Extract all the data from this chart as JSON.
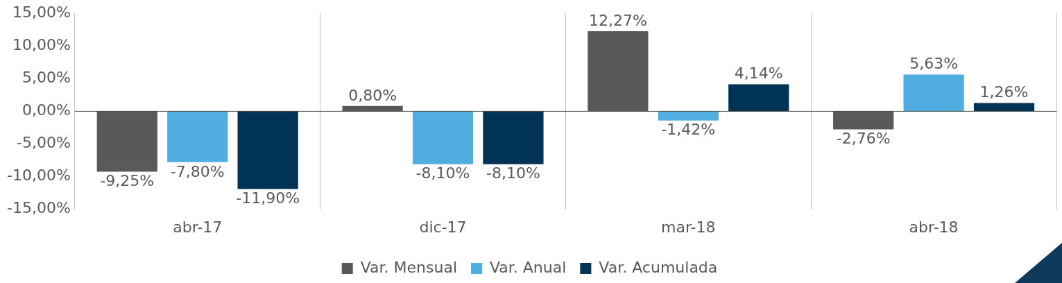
{
  "chart_data": {
    "type": "bar",
    "categories": [
      "abr-17",
      "dic-17",
      "mar-18",
      "abr-18"
    ],
    "series": [
      {
        "name": "Var. Mensual",
        "color": "#595959",
        "values": [
          -9.25,
          0.8,
          12.27,
          -2.76
        ],
        "value_labels": [
          "-9,25%",
          "0,80%",
          "12,27%",
          "-2,76%"
        ]
      },
      {
        "name": "Var. Anual",
        "color": "#4fade0",
        "values": [
          -7.8,
          -8.1,
          -1.42,
          5.63
        ],
        "value_labels": [
          "-7,80%",
          "-8,10%",
          "-1,42%",
          "5,63%"
        ]
      },
      {
        "name": "Var. Acumulada",
        "color": "#003356",
        "values": [
          -11.9,
          -8.1,
          4.14,
          1.26
        ],
        "value_labels": [
          "-11,90%",
          "-8,10%",
          "4,14%",
          "1,26%"
        ]
      }
    ],
    "ylim": [
      -15,
      15
    ],
    "yticks": [
      {
        "value": -15,
        "label": "-15,00%"
      },
      {
        "value": -10,
        "label": "-10,00%"
      },
      {
        "value": -5,
        "label": "-5,00%"
      },
      {
        "value": 0,
        "label": "0,00%"
      },
      {
        "value": 5,
        "label": "5,00%"
      },
      {
        "value": 10,
        "label": "10,00%"
      },
      {
        "value": 15,
        "label": "15,00%"
      }
    ],
    "grid": "x",
    "legend": "bottom"
  }
}
